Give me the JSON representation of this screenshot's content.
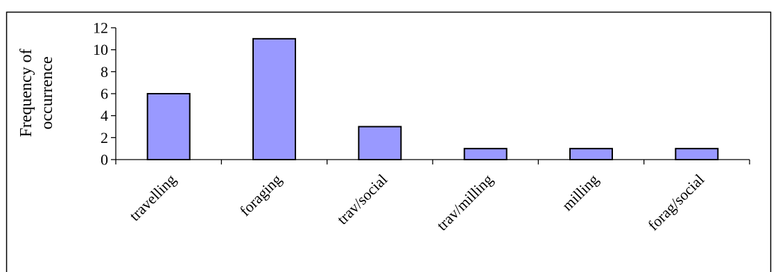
{
  "chart_data": {
    "type": "bar",
    "categories": [
      "travelling",
      "foraging",
      "trav/social",
      "trav/milling",
      "milling",
      "forag/social"
    ],
    "values": [
      6,
      11,
      3,
      1,
      1,
      1
    ],
    "title": "",
    "xlabel": "",
    "ylabel_lines": [
      "Frequency of",
      "occurrence"
    ],
    "ylim": [
      0,
      12
    ],
    "yticks": [
      0,
      2,
      4,
      6,
      8,
      10,
      12
    ],
    "grid": false,
    "legend": "none",
    "bar_color": "#9999ff",
    "bar_edge_color": "#000000"
  }
}
